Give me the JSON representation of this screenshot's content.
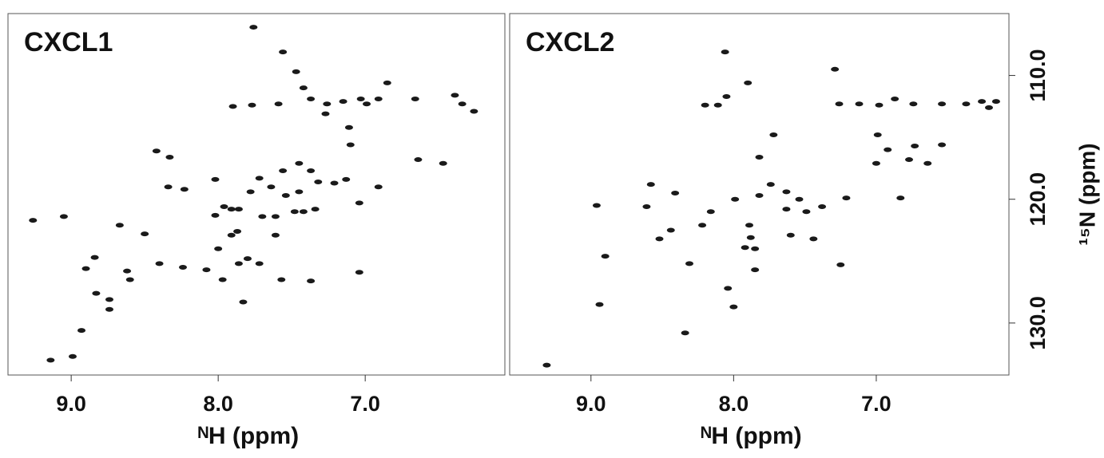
{
  "chart_data": [
    {
      "type": "scatter",
      "title": "CXCL1",
      "x_label": "ᴺH (ppm)",
      "color": "#1a1a1a",
      "xlim": [
        9.43,
        6.05
      ],
      "ylim": [
        105,
        134.2
      ],
      "xticks": [
        {
          "value": 9,
          "label": "9.0"
        },
        {
          "value": 8,
          "label": "8.0"
        },
        {
          "value": 7,
          "label": "7.0"
        }
      ],
      "x": [
        7.76,
        7.56,
        7.47,
        7.42,
        7.9,
        7.77,
        7.59,
        7.37,
        7.26,
        7.27,
        7.11,
        7.15,
        7.03,
        6.99,
        6.91,
        6.85,
        6.66,
        6.47,
        6.34,
        6.26,
        6.39,
        6.64,
        8.42,
        8.33,
        8.34,
        8.23,
        8.02,
        7.96,
        7.86,
        7.78,
        7.72,
        7.64,
        7.56,
        7.54,
        7.45,
        7.37,
        7.45,
        7.32,
        7.21,
        7.13,
        7.04,
        6.91,
        8.02,
        7.91,
        7.7,
        7.61,
        7.48,
        7.42,
        7.34,
        7.87,
        8.0,
        7.91,
        7.61,
        7.8,
        8.08,
        7.86,
        7.72,
        8.4,
        8.24,
        8.5,
        8.67,
        8.84,
        8.9,
        8.62,
        8.6,
        8.83,
        8.74,
        8.74,
        7.97,
        7.83,
        7.37,
        7.57,
        7.04,
        8.93,
        9.14,
        8.99,
        9.26,
        9.05,
        7.1
      ],
      "values": [
        106.1,
        108.1,
        109.7,
        111.0,
        112.5,
        112.4,
        112.3,
        111.9,
        112.3,
        113.1,
        114.2,
        112.1,
        111.9,
        112.3,
        111.9,
        110.6,
        111.9,
        117.1,
        112.3,
        112.9,
        111.6,
        116.8,
        116.1,
        116.6,
        119.0,
        119.2,
        118.4,
        120.6,
        120.8,
        119.4,
        118.3,
        119.0,
        117.7,
        119.7,
        117.1,
        117.7,
        119.4,
        118.6,
        118.7,
        118.4,
        120.3,
        119.0,
        121.3,
        120.8,
        121.4,
        121.4,
        121.0,
        121.0,
        120.8,
        122.6,
        124.0,
        122.9,
        122.9,
        124.8,
        125.7,
        125.2,
        125.2,
        125.2,
        125.5,
        122.8,
        122.1,
        124.7,
        125.6,
        125.8,
        126.5,
        127.6,
        128.1,
        128.9,
        126.5,
        128.3,
        126.6,
        126.5,
        125.9,
        130.6,
        133.0,
        132.7,
        121.7,
        121.4,
        115.6
      ]
    },
    {
      "type": "scatter",
      "title": "CXCL2",
      "x_label": "ᴺH (ppm)",
      "y_label": "¹⁵N (ppm)",
      "color": "#1a1a1a",
      "xlim": [
        9.57,
        6.07
      ],
      "ylim": [
        105,
        134.2
      ],
      "xticks": [
        {
          "value": 9,
          "label": "9.0"
        },
        {
          "value": 8,
          "label": "8.0"
        },
        {
          "value": 7,
          "label": "7.0"
        }
      ],
      "yticks": [
        {
          "value": 110,
          "label": "110.0"
        },
        {
          "value": 120,
          "label": "120.0"
        },
        {
          "value": 130,
          "label": "130.0"
        }
      ],
      "x": [
        8.06,
        8.05,
        8.11,
        7.9,
        7.29,
        8.2,
        7.26,
        7.12,
        6.98,
        6.87,
        6.54,
        6.37,
        6.26,
        6.21,
        6.16,
        6.74,
        6.99,
        7.72,
        7.82,
        7.0,
        6.92,
        6.73,
        6.64,
        6.54,
        6.77,
        8.58,
        8.61,
        8.96,
        8.41,
        7.99,
        7.82,
        7.74,
        7.63,
        7.63,
        7.54,
        7.49,
        7.38,
        7.21,
        8.44,
        8.52,
        8.22,
        8.16,
        7.89,
        7.88,
        7.85,
        7.92,
        7.6,
        7.44,
        8.31,
        7.85,
        7.25,
        8.9,
        8.04,
        8.0,
        8.94,
        8.34,
        9.31,
        6.83
      ],
      "values": [
        108.1,
        111.7,
        112.4,
        110.6,
        109.5,
        112.4,
        112.3,
        112.3,
        112.4,
        111.9,
        112.3,
        112.3,
        112.1,
        112.6,
        112.1,
        112.3,
        114.8,
        114.8,
        116.6,
        117.1,
        116.0,
        115.7,
        117.1,
        115.6,
        116.8,
        118.8,
        120.6,
        120.5,
        119.5,
        120.0,
        119.7,
        118.8,
        119.4,
        120.8,
        120.0,
        121.0,
        120.6,
        119.9,
        122.5,
        123.2,
        122.1,
        121.0,
        122.1,
        123.1,
        124.0,
        123.9,
        122.9,
        123.2,
        125.2,
        125.7,
        125.3,
        124.6,
        127.2,
        128.7,
        128.5,
        130.8,
        133.4,
        119.9
      ]
    }
  ]
}
